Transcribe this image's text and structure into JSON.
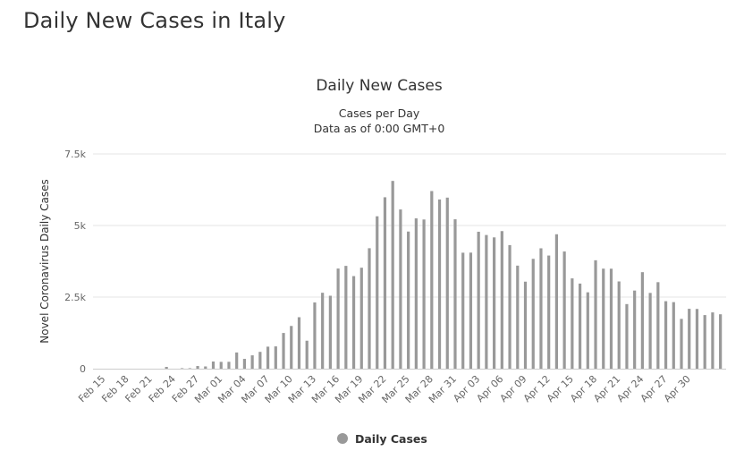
{
  "page": {
    "title": "Daily New Cases in Italy"
  },
  "chart_data": {
    "type": "bar",
    "title": "Daily New Cases",
    "subtitle": [
      "Cases per Day",
      "Data as of 0:00 GMT+0"
    ],
    "ylabel": "Novel Coronavirus Daily Cases",
    "xlabel": "",
    "ylim": [
      0,
      7500
    ],
    "yticks": [
      0,
      2500,
      5000,
      7500
    ],
    "ytick_labels": [
      "0",
      "2.5k",
      "5k",
      "7.5k"
    ],
    "xtick_labels": [
      "Feb 15",
      "Feb 18",
      "Feb 21",
      "Feb 24",
      "Feb 27",
      "Mar 01",
      "Mar 04",
      "Mar 07",
      "Mar 10",
      "Mar 13",
      "Mar 16",
      "Mar 19",
      "Mar 22",
      "Mar 25",
      "Mar 28",
      "Mar 31",
      "Apr 03",
      "Apr 06",
      "Apr 09",
      "Apr 12",
      "Apr 15",
      "Apr 18",
      "Apr 21",
      "Apr 24",
      "Apr 27",
      "Apr 30"
    ],
    "grid": true,
    "legend": {
      "position": "bottom-center",
      "label": "Daily Cases",
      "color": "#999999"
    },
    "bar_color": "#999999",
    "series": [
      {
        "name": "Daily Cases",
        "values": [
          0,
          0,
          0,
          0,
          0,
          0,
          0,
          0,
          62,
          0,
          17,
          17,
          93,
          78,
          250,
          238,
          240,
          566,
          342,
          466,
          587,
          769,
          778,
          1247,
          1492,
          1797,
          977,
          2313,
          2651,
          2547,
          3497,
          3590,
          3233,
          3526,
          4207,
          5322,
          5986,
          6557,
          5560,
          4789,
          5249,
          5210,
          6203,
          5909,
          5974,
          5217,
          4050,
          4053,
          4782,
          4668,
          4585,
          4805,
          4316,
          3599,
          3039,
          3836,
          4204,
          3951,
          4694,
          4092,
          3153,
          2972,
          2667,
          3786,
          3493,
          3491,
          3047,
          2256,
          2729,
          3370,
          2646,
          3021,
          2357,
          2324,
          1739,
          2091,
          2086,
          1872,
          1965,
          1900
        ]
      }
    ]
  }
}
